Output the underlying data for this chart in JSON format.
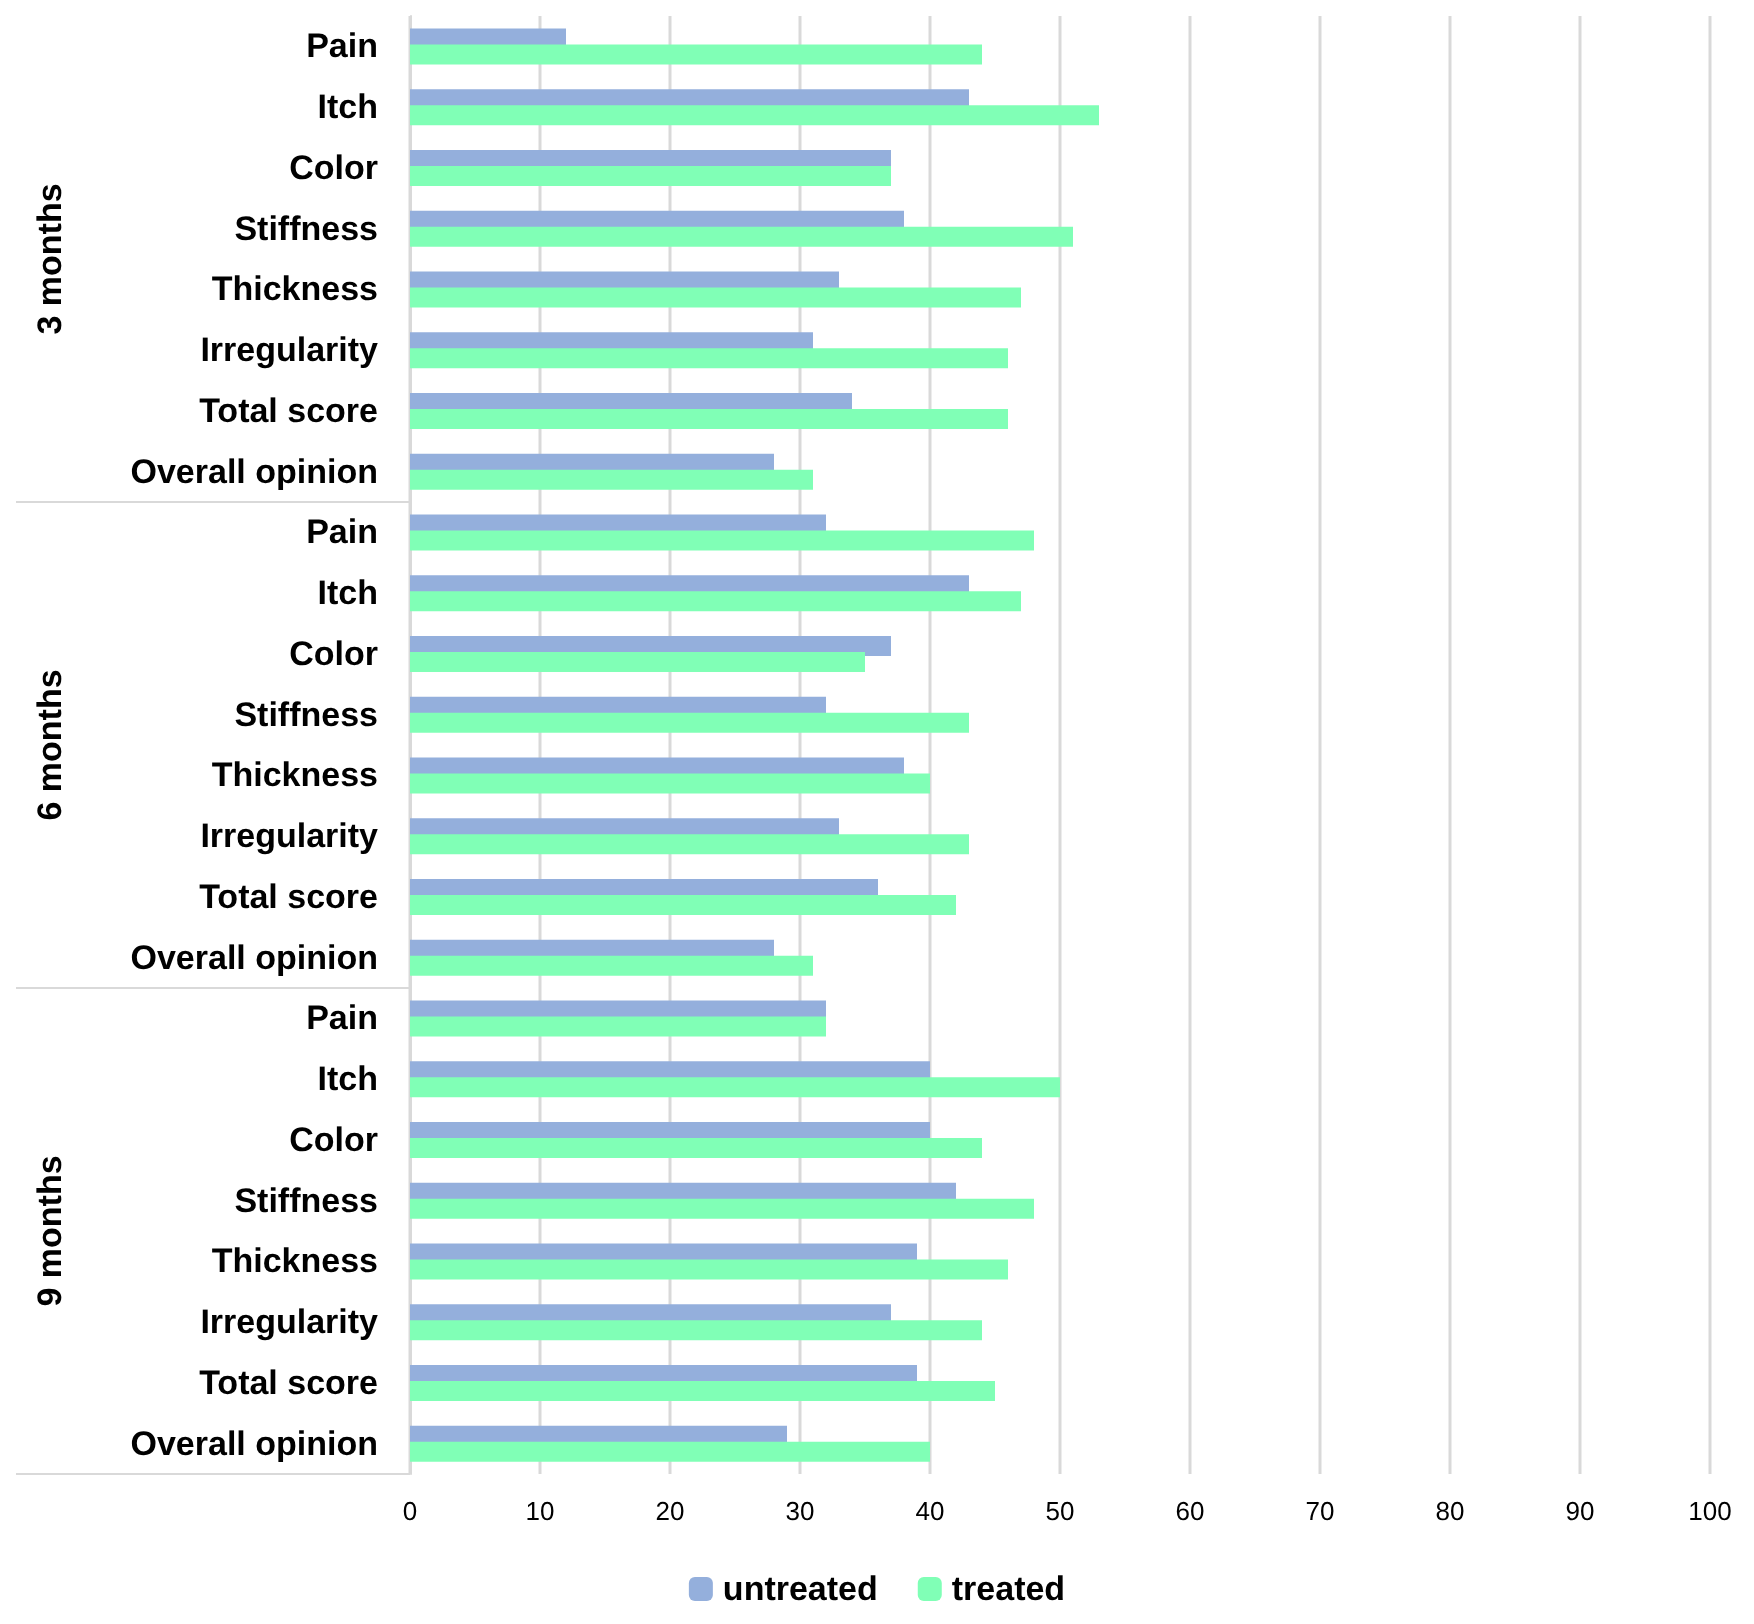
{
  "chart_data": {
    "type": "bar",
    "orientation": "horizontal",
    "categories": [
      "Pain",
      "Itch",
      "Color",
      "Stiffness",
      "Thickness",
      "Irregularity",
      "Total score",
      "Overall opinion",
      "Pain",
      "Itch",
      "Color",
      "Stiffness",
      "Thickness",
      "Irregularity",
      "Total score",
      "Overall opinion",
      "Pain",
      "Itch",
      "Color",
      "Stiffness",
      "Thickness",
      "Irregularity",
      "Total score",
      "Overall opinion"
    ],
    "series": [
      {
        "name": "untreated",
        "color": "#94afdc",
        "values": [
          12,
          43,
          37,
          38,
          33,
          31,
          34,
          28,
          32,
          43,
          37,
          32,
          38,
          33,
          36,
          28,
          32,
          40,
          40,
          42,
          39,
          37,
          39,
          29
        ]
      },
      {
        "name": "treated",
        "color": "#80ffb6",
        "values": [
          44,
          53,
          37,
          51,
          47,
          46,
          46,
          31,
          48,
          47,
          35,
          43,
          40,
          43,
          42,
          31,
          32,
          50,
          44,
          48,
          46,
          44,
          45,
          40
        ]
      }
    ],
    "xlim": [
      0,
      100
    ],
    "xticks": [
      0,
      10,
      20,
      30,
      40,
      50,
      60,
      70,
      80,
      90,
      100
    ],
    "grid": "x",
    "legend": "bottom",
    "annotations": [
      "3 months",
      "6 months",
      "9 months"
    ]
  }
}
